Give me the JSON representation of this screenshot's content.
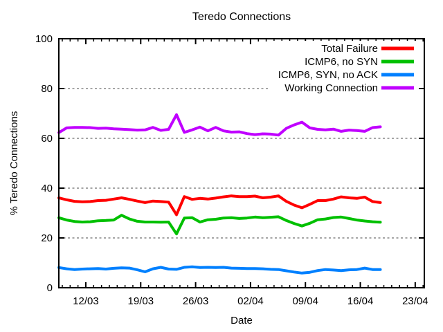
{
  "window": {
    "background_color": "#ffffff"
  },
  "chart_data": {
    "type": "line",
    "title": "Teredo Connections",
    "xlabel": "Date",
    "ylabel": "% Teredo Connections",
    "ylim": [
      0,
      100
    ],
    "yticks": [
      0,
      20,
      40,
      60,
      80,
      100
    ],
    "grid": "horizontal-dashed-at-major-yticks",
    "grid_color": "#a6a6a6",
    "border_color": "#000000",
    "legend_position": "top-right-inside",
    "x_axis": {
      "day_max": 46.6,
      "major_ticks": [
        {
          "label": "12/03",
          "day": 3.44
        },
        {
          "label": "19/03",
          "day": 10.44
        },
        {
          "label": "26/03",
          "day": 17.44
        },
        {
          "label": "02/04",
          "day": 24.44
        },
        {
          "label": "09/04",
          "day": 31.44
        },
        {
          "label": "16/04",
          "day": 38.44
        },
        {
          "label": "23/04",
          "day": 45.44
        }
      ],
      "minor_tick_start_day": 0.44,
      "minor_tick_interval_days": 1
    },
    "points_day_start": 0,
    "points_day_interval": 1,
    "series": [
      {
        "name": "Total Failure",
        "color": "#ff0000",
        "values": [
          36.1,
          35.3,
          34.7,
          34.5,
          34.6,
          35.0,
          35.1,
          35.6,
          36.1,
          35.5,
          34.8,
          34.2,
          34.8,
          34.6,
          34.4,
          29.3,
          36.6,
          35.5,
          35.9,
          35.6,
          36.0,
          36.5,
          36.9,
          36.6,
          36.6,
          36.8,
          36.1,
          36.4,
          36.9,
          34.7,
          33.2,
          32.1,
          33.5,
          35.0,
          35.0,
          35.6,
          36.5,
          36.1,
          35.9,
          36.4,
          34.6,
          34.2
        ]
      },
      {
        "name": "ICMP6, no SYN",
        "color": "#00c000",
        "values": [
          28.1,
          27.2,
          26.6,
          26.4,
          26.5,
          26.9,
          27.0,
          27.2,
          29.1,
          27.6,
          26.7,
          26.4,
          26.4,
          26.3,
          26.4,
          21.6,
          28.0,
          28.1,
          26.4,
          27.3,
          27.5,
          28.0,
          28.1,
          27.8,
          28.0,
          28.4,
          28.1,
          28.3,
          28.5,
          27.0,
          25.8,
          24.8,
          25.9,
          27.3,
          27.6,
          28.2,
          28.4,
          27.8,
          27.2,
          26.8,
          26.5,
          26.3
        ]
      },
      {
        "name": "ICMP6, SYN, no ACK",
        "color": "#0080ff",
        "values": [
          8.1,
          7.6,
          7.3,
          7.5,
          7.6,
          7.7,
          7.5,
          7.8,
          8.0,
          7.9,
          7.2,
          6.4,
          7.6,
          8.2,
          7.5,
          7.4,
          8.2,
          8.4,
          8.1,
          8.2,
          8.1,
          8.2,
          7.9,
          7.8,
          7.7,
          7.7,
          7.6,
          7.4,
          7.3,
          6.8,
          6.3,
          5.9,
          6.2,
          6.9,
          7.3,
          7.1,
          6.9,
          7.2,
          7.3,
          7.9,
          7.3,
          7.3
        ]
      },
      {
        "name": "Working Connection",
        "color": "#c000ff",
        "values": [
          62.3,
          64.2,
          64.4,
          64.4,
          64.3,
          64.0,
          64.1,
          63.8,
          63.7,
          63.5,
          63.3,
          63.4,
          64.4,
          63.2,
          63.6,
          69.5,
          62.4,
          63.4,
          64.5,
          63.0,
          64.4,
          63.0,
          62.5,
          62.6,
          61.9,
          61.5,
          61.8,
          61.7,
          61.3,
          64.0,
          65.4,
          66.5,
          64.2,
          63.6,
          63.4,
          63.7,
          62.8,
          63.3,
          63.1,
          62.8,
          64.3,
          64.6
        ]
      }
    ]
  }
}
